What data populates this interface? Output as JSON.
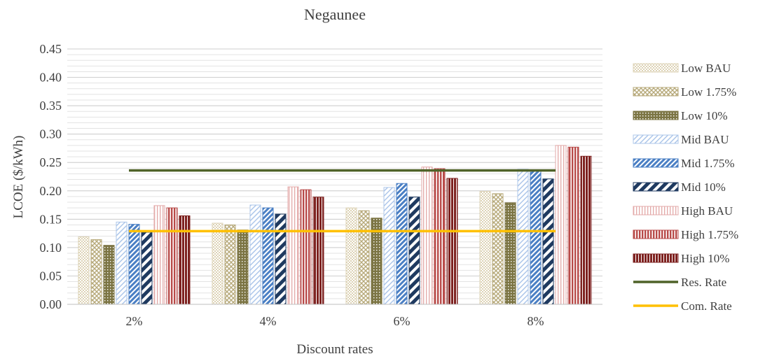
{
  "chart_data": {
    "type": "bar",
    "title": "Negaunee",
    "xlabel": "Discount rates",
    "ylabel": "LCOE ($/kWh)",
    "ylim": [
      0,
      0.45
    ],
    "yticks": [
      "0.00",
      "0.05",
      "0.10",
      "0.15",
      "0.20",
      "0.25",
      "0.30",
      "0.35",
      "0.40",
      "0.45"
    ],
    "grid": true,
    "legend_position": "right",
    "categories": [
      "2%",
      "4%",
      "6%",
      "8%"
    ],
    "series": [
      {
        "name": "Low BAU",
        "values": [
          0.119,
          0.143,
          0.17,
          0.199
        ],
        "color": "#ddd3b6",
        "pattern": "dots-light"
      },
      {
        "name": "Low 1.75%",
        "values": [
          0.114,
          0.14,
          0.165,
          0.195
        ],
        "color": "#b7a97a",
        "pattern": "diamond"
      },
      {
        "name": "Low 10%",
        "values": [
          0.104,
          0.131,
          0.152,
          0.179
        ],
        "color": "#7c7544",
        "pattern": "dots-dense"
      },
      {
        "name": "Mid BAU",
        "values": [
          0.145,
          0.175,
          0.206,
          0.238
        ],
        "color": "#aec7ea",
        "pattern": "diag-light"
      },
      {
        "name": "Mid 1.75%",
        "values": [
          0.141,
          0.17,
          0.213,
          0.237
        ],
        "color": "#4a7fc4",
        "pattern": "diag-mid"
      },
      {
        "name": "Mid 10%",
        "values": [
          0.127,
          0.159,
          0.189,
          0.221
        ],
        "color": "#1f3a60",
        "pattern": "diag-wide"
      },
      {
        "name": "High BAU",
        "values": [
          0.174,
          0.207,
          0.242,
          0.28
        ],
        "color": "#e3a9a8",
        "pattern": "vert-light"
      },
      {
        "name": "High 1.75%",
        "values": [
          0.17,
          0.202,
          0.239,
          0.277
        ],
        "color": "#b84a48",
        "pattern": "vert-mid"
      },
      {
        "name": "High 10%",
        "values": [
          0.156,
          0.189,
          0.222,
          0.261
        ],
        "color": "#7e2220",
        "pattern": "vert-dense"
      }
    ],
    "lines": [
      {
        "name": "Res. Rate",
        "value": 0.236,
        "color": "#4f6228"
      },
      {
        "name": "Com. Rate",
        "value": 0.129,
        "color": "#ffc000"
      }
    ]
  }
}
